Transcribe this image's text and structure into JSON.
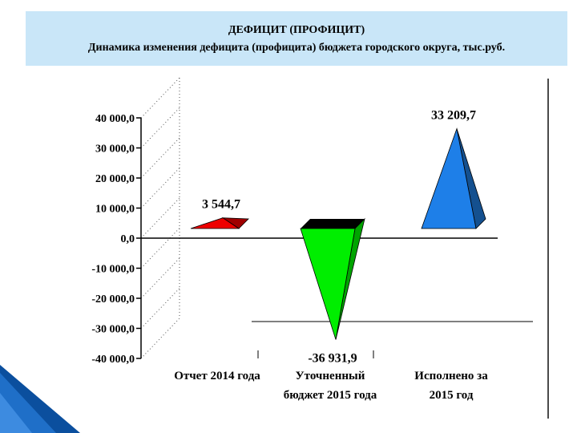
{
  "header": {
    "title": "ДЕФИЦИТ (ПРОФИЦИТ)",
    "subtitle": "Динамика изменения дефицита (профицита) бюджета городского округа, тыс.руб."
  },
  "colors": {
    "header_bg": "#c9e6f8",
    "decor_blue": "#1f6fc8",
    "axis": "#000000",
    "gridline": "#555555"
  },
  "chart_data": {
    "type": "bar",
    "style": "3d-pyramid",
    "title": "",
    "xlabel": "",
    "ylabel": "",
    "ylim": [
      -40000,
      40000
    ],
    "yticks": [
      40000,
      30000,
      20000,
      10000,
      0,
      -10000,
      -20000,
      -30000,
      -40000
    ],
    "ytick_labels": [
      "40 000,0",
      "30 000,0",
      "20 000,0",
      "10 000,0",
      "0,0",
      "-10 000,0",
      "-20 000,0",
      "-30 000,0",
      "-40 000,0"
    ],
    "grid": false,
    "legend": "none",
    "categories": [
      [
        "Отчет 2014 года"
      ],
      [
        "Уточненный",
        "бюджет 2015 года"
      ],
      [
        "Исполнено за",
        "2015 год"
      ]
    ],
    "values": [
      3544.7,
      -36931.9,
      33209.7
    ],
    "data_labels": [
      "3 544,7",
      "-36 931,9",
      "33 209,7"
    ],
    "colors": [
      "#ee0000",
      "#00ee00",
      "#1e7fe8"
    ],
    "side_colors": [
      "#a00000",
      "#00a400",
      "#14508f"
    ]
  }
}
